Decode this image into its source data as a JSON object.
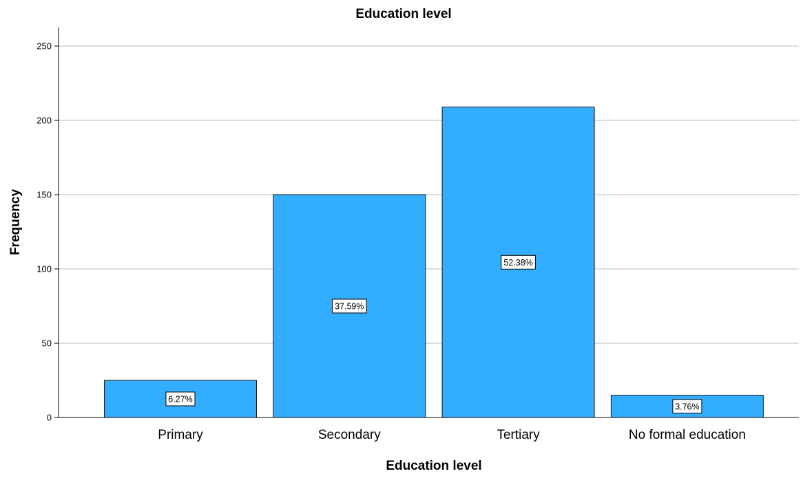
{
  "chart_data": {
    "type": "bar",
    "title": "Education level",
    "xlabel": "Education level",
    "ylabel": "Frequency",
    "categories": [
      "Primary",
      "Secondary",
      "Tertiary",
      "No formal education"
    ],
    "values": [
      25,
      150,
      209,
      15
    ],
    "data_labels": [
      "6.27%",
      "37.59%",
      "52.38%",
      "3.76%"
    ],
    "ylim": [
      0,
      250
    ],
    "yticks": [
      0,
      50,
      100,
      150,
      200,
      250
    ],
    "grid": "horizontal",
    "legend": "none",
    "colors": {
      "bar_fill": "#33adff",
      "bar_stroke": "#1a1a1a",
      "gridline": "#c8c8c8",
      "axis": "#000000"
    }
  }
}
